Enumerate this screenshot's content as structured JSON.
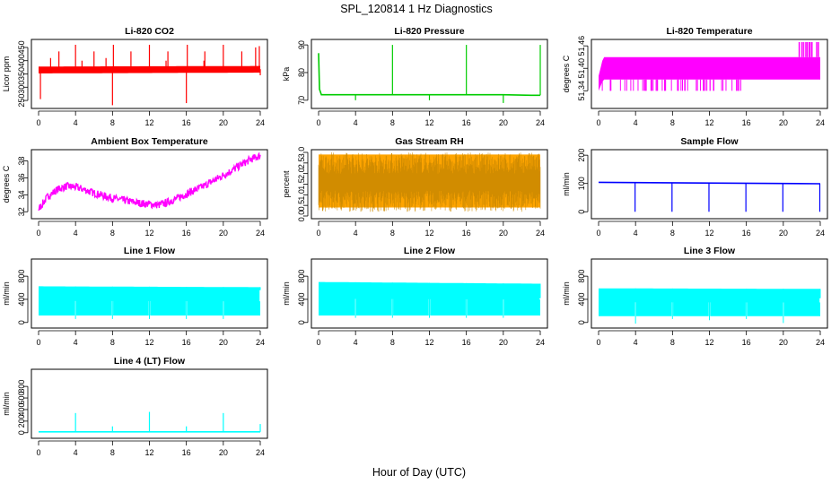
{
  "figure": {
    "title": "SPL_120814  1 Hz Diagnostics",
    "xlabel": "Hour of Day (UTC)"
  },
  "chart_data": [
    {
      "type": "line",
      "title": "Li-820 CO2",
      "ylabel": "Licor ppm",
      "color": "#ff0000",
      "xlim": [
        0,
        24
      ],
      "xticks": [
        "0",
        "4",
        "8",
        "12",
        "16",
        "20",
        "24"
      ],
      "ylim": [
        230,
        470
      ],
      "yticks": [
        "250",
        "300",
        "350",
        "400",
        "450"
      ],
      "yticks_rotated": true,
      "series": [
        {
          "x": [
            0,
            24
          ],
          "y": [
            365,
            368
          ]
        }
      ],
      "band": {
        "x": [
          0,
          24
        ],
        "low": [
          352,
          355
        ],
        "high": [
          378,
          380
        ]
      },
      "spikes": [
        {
          "x": 0.2,
          "y": 255
        },
        {
          "x": 1.3,
          "y": 410
        },
        {
          "x": 2.2,
          "y": 435
        },
        {
          "x": 4.0,
          "y": 460
        },
        {
          "x": 4.7,
          "y": 400
        },
        {
          "x": 6.0,
          "y": 435
        },
        {
          "x": 7.3,
          "y": 410
        },
        {
          "x": 8.0,
          "y": 232
        },
        {
          "x": 8.1,
          "y": 460
        },
        {
          "x": 10.0,
          "y": 435
        },
        {
          "x": 12.0,
          "y": 460
        },
        {
          "x": 13.8,
          "y": 400
        },
        {
          "x": 14.0,
          "y": 435
        },
        {
          "x": 16.0,
          "y": 240
        },
        {
          "x": 16.1,
          "y": 460
        },
        {
          "x": 17.9,
          "y": 400
        },
        {
          "x": 18.0,
          "y": 435
        },
        {
          "x": 20.0,
          "y": 460
        },
        {
          "x": 22.0,
          "y": 435
        },
        {
          "x": 23.5,
          "y": 450
        },
        {
          "x": 23.9,
          "y": 455
        },
        {
          "x": 24.0,
          "y": 345
        }
      ]
    },
    {
      "type": "line",
      "title": "Li-820 Pressure",
      "ylabel": "kPa",
      "color": "#00cc00",
      "xlim": [
        0,
        24
      ],
      "xticks": [
        "0",
        "4",
        "8",
        "12",
        "16",
        "20",
        "24"
      ],
      "ylim": [
        68,
        91
      ],
      "yticks": [
        "70",
        "80",
        "90"
      ],
      "series": [
        {
          "x": [
            0,
            0.1,
            0.3,
            8,
            16,
            20,
            23,
            24
          ],
          "y": [
            87,
            74,
            72,
            72,
            72,
            72,
            71.8,
            71.8
          ]
        }
      ],
      "spikes": [
        {
          "x": 0,
          "y": 87
        },
        {
          "x": 4,
          "y": 70
        },
        {
          "x": 8,
          "y": 90
        },
        {
          "x": 12,
          "y": 70
        },
        {
          "x": 16,
          "y": 90
        },
        {
          "x": 20,
          "y": 69
        },
        {
          "x": 24,
          "y": 90
        }
      ]
    },
    {
      "type": "line",
      "title": "Li-820 Temperature",
      "ylabel": "degrees C",
      "color": "#ff00ff",
      "xlim": [
        0,
        24
      ],
      "xticks": [
        "0",
        "4",
        "8",
        "12",
        "16",
        "20",
        "24"
      ],
      "ylim": [
        51.3,
        51.47
      ],
      "yticks": [
        "51.34",
        "51.40",
        "51.46"
      ],
      "yticks_rotated": true,
      "band": {
        "x": [
          0,
          0.5,
          24
        ],
        "low": [
          51.34,
          51.37,
          51.37
        ],
        "high": [
          51.38,
          51.43,
          51.43
        ]
      },
      "spikes": []
    },
    {
      "type": "line",
      "title": "Ambient Box Temperature",
      "ylabel": "degrees C",
      "color": "#ff00ff",
      "xlim": [
        0,
        24
      ],
      "xticks": [
        "0",
        "4",
        "8",
        "12",
        "16",
        "20",
        "24"
      ],
      "ylim": [
        31.5,
        39
      ],
      "yticks": [
        "32",
        "34",
        "36",
        "38"
      ],
      "series": [
        {
          "x": [
            0,
            1,
            2,
            3,
            4,
            5,
            6,
            7,
            8,
            9,
            10,
            11,
            12,
            13,
            14,
            15,
            16,
            17,
            18,
            19,
            20,
            21,
            22,
            23,
            24
          ],
          "y": [
            32.3,
            33.8,
            34.6,
            35.0,
            34.9,
            34.6,
            34.2,
            33.9,
            33.6,
            33.4,
            33.2,
            33.0,
            32.9,
            32.8,
            33.1,
            33.6,
            34.1,
            34.6,
            35.1,
            35.7,
            36.3,
            36.9,
            37.6,
            38.2,
            38.6
          ]
        }
      ],
      "band_half_width": 0.45
    },
    {
      "type": "line",
      "title": "Gas Stream RH",
      "ylabel": "percent",
      "color": "#ffa500",
      "xlim": [
        0,
        24
      ],
      "xticks": [
        "0",
        "4",
        "8",
        "12",
        "16",
        "20",
        "24"
      ],
      "ylim": [
        0,
        3.0
      ],
      "yticks": [
        "0.0",
        "0.5",
        "1.0",
        "1.5",
        "2.0",
        "2.5",
        "3.0"
      ],
      "series": [
        {
          "x": [
            0,
            24
          ],
          "y": [
            1.6,
            1.6
          ]
        }
      ],
      "band": {
        "x": [
          0,
          24
        ],
        "low": [
          0.4,
          0.4
        ],
        "high": [
          2.9,
          2.9
        ]
      }
    },
    {
      "type": "line",
      "title": "Sample Flow",
      "ylabel": "ml/min",
      "color": "#0000ff",
      "xlim": [
        0,
        24
      ],
      "xticks": [
        "0",
        "4",
        "8",
        "12",
        "16",
        "20",
        "24"
      ],
      "ylim": [
        -15,
        210
      ],
      "yticks": [
        "0",
        "100",
        "200"
      ],
      "series": [
        {
          "x": [
            0,
            24
          ],
          "y": [
            104,
            99
          ]
        }
      ],
      "spikes": [
        {
          "x": 3.95,
          "y": 0
        },
        {
          "x": 7.95,
          "y": 0
        },
        {
          "x": 11.95,
          "y": 0
        },
        {
          "x": 15.95,
          "y": 0
        },
        {
          "x": 19.95,
          "y": 0
        },
        {
          "x": 23.95,
          "y": 0
        }
      ]
    },
    {
      "type": "area",
      "title": "Line 1 Flow",
      "ylabel": "ml/min",
      "color": "#00ffff",
      "xlim": [
        0,
        24
      ],
      "xticks": [
        "0",
        "4",
        "8",
        "12",
        "16",
        "20",
        "24"
      ],
      "ylim": [
        -50,
        1050
      ],
      "yticks": [
        "0",
        "400",
        "800"
      ],
      "band": {
        "x": [
          0,
          24
        ],
        "low": [
          120,
          120
        ],
        "high": [
          625,
          610
        ]
      },
      "spikes": [
        {
          "x": 4,
          "y": 60
        },
        {
          "x": 8,
          "y": 60
        },
        {
          "x": 12,
          "y": 60
        },
        {
          "x": 16,
          "y": 60
        },
        {
          "x": 20,
          "y": 60
        },
        {
          "x": 24,
          "y": 560
        }
      ]
    },
    {
      "type": "area",
      "title": "Line 2 Flow",
      "ylabel": "ml/min",
      "color": "#00ffff",
      "xlim": [
        0,
        24
      ],
      "xticks": [
        "0",
        "4",
        "8",
        "12",
        "16",
        "20",
        "24"
      ],
      "ylim": [
        -50,
        1050
      ],
      "yticks": [
        "0",
        "400",
        "800"
      ],
      "band": {
        "x": [
          0,
          24
        ],
        "low": [
          120,
          120
        ],
        "high": [
          700,
          670
        ]
      },
      "spikes": [
        {
          "x": 4,
          "y": 80
        },
        {
          "x": 8,
          "y": 80
        },
        {
          "x": 12,
          "y": 80
        },
        {
          "x": 16,
          "y": 80
        },
        {
          "x": 20,
          "y": 80
        },
        {
          "x": 24,
          "y": 420
        }
      ]
    },
    {
      "type": "area",
      "title": "Line 3 Flow",
      "ylabel": "ml/min",
      "color": "#00ffff",
      "xlim": [
        0,
        24
      ],
      "xticks": [
        "0",
        "4",
        "8",
        "12",
        "16",
        "20",
        "24"
      ],
      "ylim": [
        -50,
        1050
      ],
      "yticks": [
        "0",
        "400",
        "800"
      ],
      "band": {
        "x": [
          0,
          24
        ],
        "low": [
          110,
          110
        ],
        "high": [
          590,
          580
        ]
      },
      "spikes": [
        {
          "x": 4,
          "y": -20
        },
        {
          "x": 8,
          "y": 60
        },
        {
          "x": 12,
          "y": 40
        },
        {
          "x": 16,
          "y": 60
        },
        {
          "x": 20,
          "y": -10
        },
        {
          "x": 24,
          "y": 420
        }
      ]
    },
    {
      "type": "line",
      "title": "Line 4 (LT) Flow",
      "ylabel": "ml/min",
      "color": "#00ffff",
      "xlim": [
        0,
        24
      ],
      "xticks": [
        "0",
        "4",
        "8",
        "12",
        "16",
        "20",
        "24"
      ],
      "ylim": [
        -50,
        1050
      ],
      "yticks": [
        "0",
        "200",
        "400",
        "600",
        "800"
      ],
      "series": [
        {
          "x": [
            0,
            24
          ],
          "y": [
            15,
            15
          ]
        }
      ],
      "spikes": [
        {
          "x": 4,
          "y": 340
        },
        {
          "x": 8,
          "y": 110
        },
        {
          "x": 12,
          "y": 360
        },
        {
          "x": 16,
          "y": 110
        },
        {
          "x": 20,
          "y": 340
        },
        {
          "x": 24,
          "y": 150
        }
      ]
    }
  ]
}
